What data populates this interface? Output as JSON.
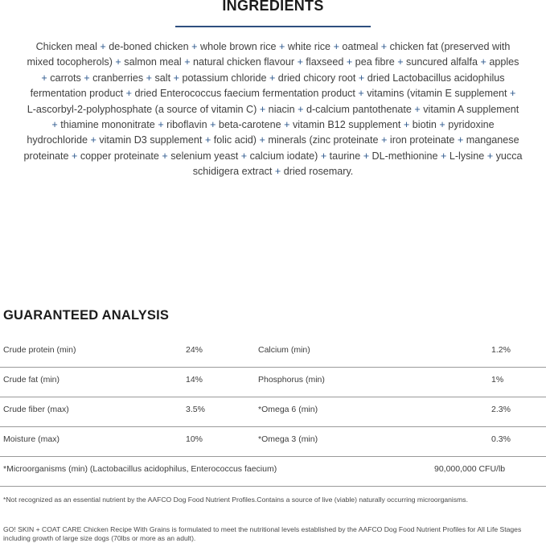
{
  "ingredients": {
    "title": "INGREDIENTS",
    "lines": [
      "Chicken meal + de-boned chicken + whole brown rice + white rice + oatmeal + chicken fat (preserved with",
      "mixed tocopherols) + salmon meal + natural chicken flavour + flaxseed + pea fibre + suncured alfalfa + apples",
      "+ carrots + cranberries + salt + potassium chloride + dried chicory root + dried Lactobacillus acidophilus",
      "fermentation product + dried Enterococcus faecium fermentation product + vitamins (vitamin E supplement +",
      "L-ascorbyl-2-polyphosphate (a source of vitamin C) + niacin + d-calcium pantothenate + vitamin A supplement",
      "+ thiamine mononitrate + riboflavin + beta-carotene + vitamin B12 supplement + biotin + pyridoxine",
      "hydrochloride + vitamin D3 supplement + folic acid) + minerals (zinc proteinate + iron proteinate + manganese",
      "proteinate + copper proteinate + selenium yeast + calcium iodate) + taurine + DL-methionine + L-lysine + yucca",
      "schidigera extract + dried rosemary."
    ]
  },
  "analysis": {
    "title": "GUARANTEED ANALYSIS",
    "rows": [
      {
        "l1": "Crude protein (min)",
        "v1": "24%",
        "l2": "Calcium (min)",
        "v2": "1.2%"
      },
      {
        "l1": "Crude fat (min)",
        "v1": "14%",
        "l2": "Phosphorus (min)",
        "v2": "1%"
      },
      {
        "l1": "Crude fiber (max)",
        "v1": "3.5%",
        "l2": "*Omega 6 (min)",
        "v2": "2.3%"
      },
      {
        "l1": "Moisture (max)",
        "v1": "10%",
        "l2": "*Omega 3 (min)",
        "v2": "0.3%"
      }
    ],
    "micro": {
      "label": "*Microorganisms (min) (Lactobacillus acidophilus, Enterococcus faecium)",
      "value": "90,000,000 CFU/lb"
    }
  },
  "footnote": "*Not recognized as an essential nutrient by the AAFCO Dog Food Nutrient Profiles.Contains a source of live (viable) naturally occurring microorganisms.",
  "statement": "GO! SKIN + COAT CARE Chicken Recipe With Grains is formulated to meet the nutritional levels established by the AAFCO Dog Food Nutrient Profiles for All Life Stages including growth of large size dogs (70lbs or more as an adult).",
  "colors": {
    "accent": "#2e4f7f"
  }
}
